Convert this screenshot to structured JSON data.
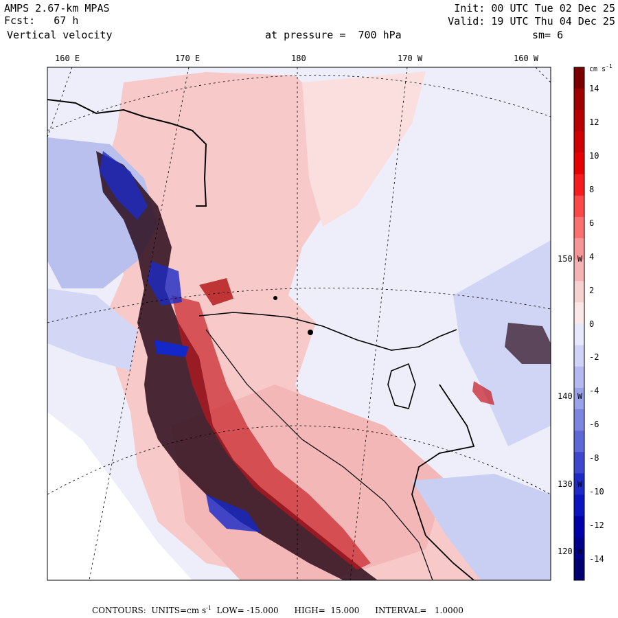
{
  "header": {
    "model": "AMPS 2.67-km MPAS",
    "forecast": "Fcst:   67 h",
    "field": "Vertical velocity",
    "init": "Init: 00 UTC Tue 02 Dec 25",
    "valid": "Valid: 19 UTC Thu 04 Dec 25",
    "pressure": "at pressure =  700 hPa",
    "smoothing": "sm= 6"
  },
  "longitude_labels": [
    "160 E",
    "170 E",
    "180",
    "170 W",
    "160 W"
  ],
  "latitude_labels": [
    "150 W",
    "140 W",
    "130 W",
    "120 W"
  ],
  "colorbar": {
    "units": "cm s",
    "units_exp": "-1",
    "labels": [
      "14",
      "12",
      "10",
      "8",
      "6",
      "4",
      "2",
      "0",
      "-2",
      "-4",
      "-6",
      "-8",
      "-10",
      "-12",
      "-14"
    ],
    "colors": [
      "#7a0000",
      "#9e0000",
      "#b80000",
      "#d10000",
      "#e60000",
      "#f41c1c",
      "#fb4848",
      "#fb7070",
      "#f79696",
      "#f5b3b3",
      "#f7d0d0",
      "#fbe7e7",
      "#e6e8fb",
      "#cfd3f6",
      "#b4baef",
      "#9aa2e9",
      "#7c86e1",
      "#5e69d8",
      "#3e48ce",
      "#1f2ac4",
      "#0a14bf",
      "#0000a8",
      "#00008c",
      "#000070"
    ]
  },
  "map_colors": {
    "pos": "#f5b8b8",
    "pos2": "#ef8f8f",
    "pos3": "#d42020",
    "neg": "#c8cdf2",
    "neg2": "#8f98e3",
    "neg3": "#1c2bc4",
    "bg": "#e9ebfa",
    "dark": "#5a0000"
  },
  "footer": {
    "prefix": "CONTOURS:  UNITS=cm s",
    "exp": "-1",
    "rest": "  LOW= -15.000      HIGH=  15.000      INTERVAL=   1.0000"
  }
}
